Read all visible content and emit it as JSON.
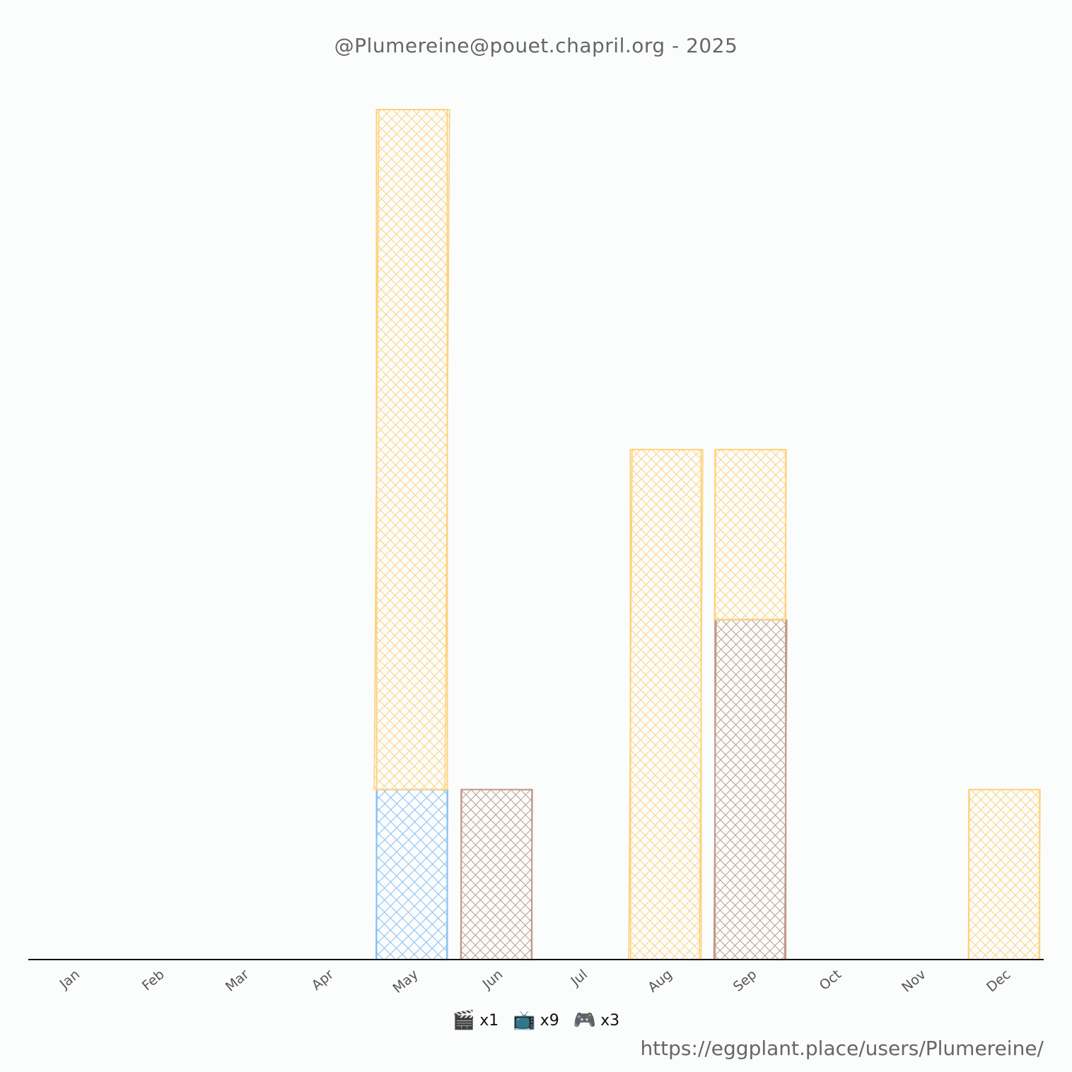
{
  "title": "@Plumereine@pouet.chapril.org - 2025",
  "footer_url": "https://eggplant.place/users/Plumereine/",
  "legend": [
    {
      "icon": "clapper-board-icon",
      "glyph": "🎬",
      "label": "x1"
    },
    {
      "icon": "television-icon",
      "glyph": "📺",
      "label": "x9"
    },
    {
      "icon": "game-controller-icon",
      "glyph": "🎮",
      "label": "x3"
    }
  ],
  "chart_data": {
    "type": "bar",
    "stacked": true,
    "categories": [
      "Jan",
      "Feb",
      "Mar",
      "Apr",
      "May",
      "Jun",
      "Jul",
      "Aug",
      "Sep",
      "Oct",
      "Nov",
      "Dec"
    ],
    "ylim": [
      0,
      5
    ],
    "grid": false,
    "series": [
      {
        "color": "#85bff5",
        "values": [
          0,
          0,
          0,
          0,
          1,
          0,
          0,
          0,
          0,
          0,
          0,
          0
        ]
      },
      {
        "color": "#c09a88",
        "values": [
          0,
          0,
          0,
          0,
          0,
          1,
          0,
          0,
          2,
          0,
          0,
          0
        ]
      },
      {
        "color": "#fdd27a",
        "values": [
          0,
          0,
          0,
          0,
          4,
          0,
          0,
          3,
          1,
          0,
          0,
          1
        ]
      }
    ]
  }
}
